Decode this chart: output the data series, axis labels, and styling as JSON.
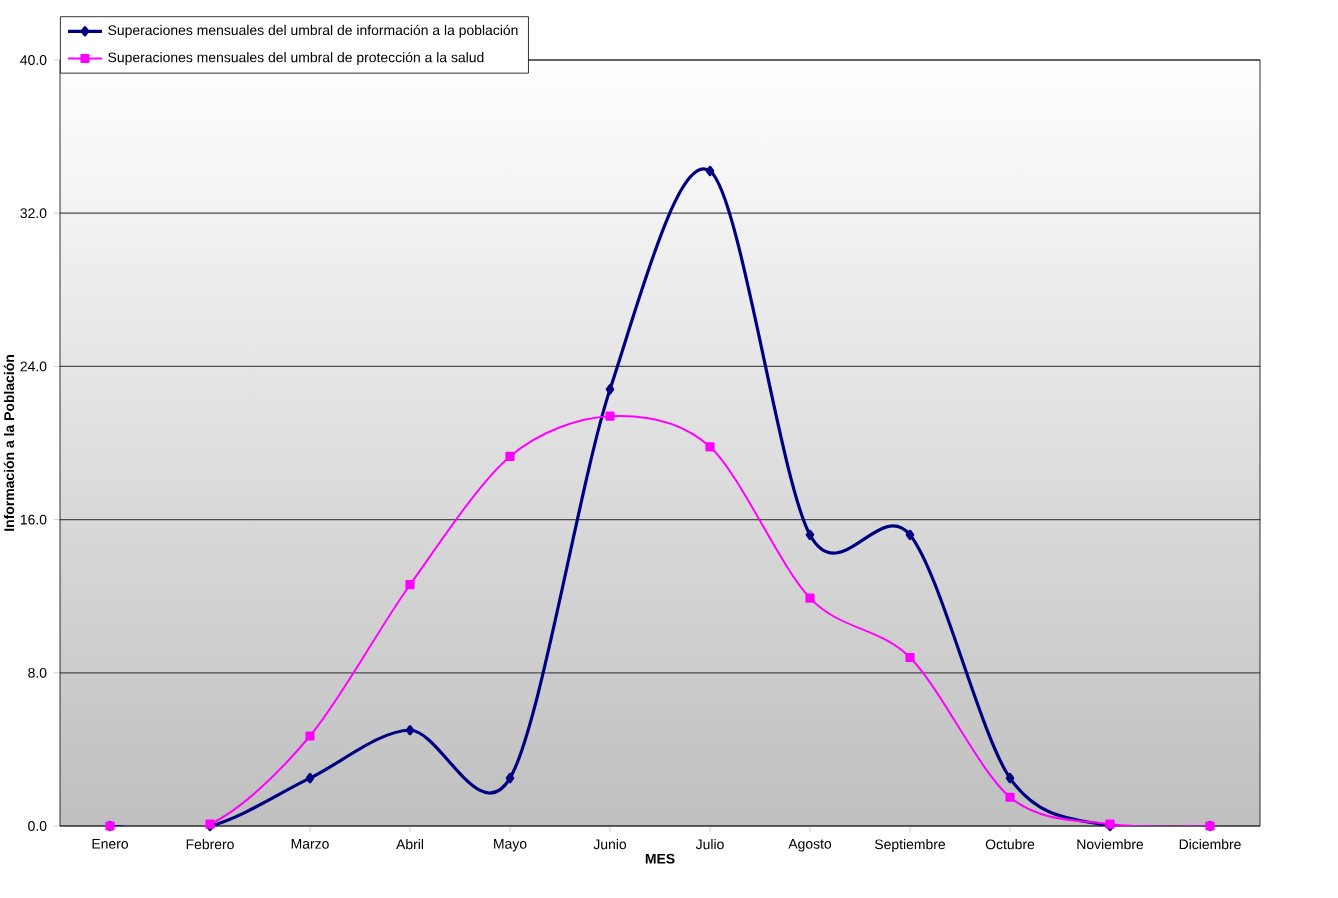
{
  "chart_data": {
    "type": "line",
    "xlabel": "MES",
    "ylabel": "Información a la Población",
    "categories": [
      "Enero",
      "Febrero",
      "Marzo",
      "Abril",
      "Mayo",
      "Junio",
      "Julio",
      "Agosto",
      "Septiembre",
      "Octubre",
      "Noviembre",
      "Diciembre"
    ],
    "series": [
      {
        "name": "Superaciones mensuales del umbral de información a la población",
        "color": "#000080",
        "marker": "diamond",
        "values": [
          0,
          0,
          2.5,
          5.0,
          2.5,
          22.8,
          34.2,
          15.2,
          15.2,
          2.5,
          0,
          0
        ]
      },
      {
        "name": "Superaciones mensuales del umbral de protección a la salud",
        "color": "#ff00ff",
        "marker": "square",
        "values": [
          0,
          0.1,
          4.7,
          12.6,
          19.3,
          21.4,
          19.8,
          11.9,
          8.8,
          1.5,
          0.1,
          0
        ]
      }
    ],
    "ylim": [
      0,
      40
    ],
    "yticks": [
      {
        "value": 0,
        "label": "0.0"
      },
      {
        "value": 8,
        "label": "8.0"
      },
      {
        "value": 16,
        "label": "16.0"
      },
      {
        "value": 24,
        "label": "24.0"
      },
      {
        "value": 32,
        "label": "32.0"
      },
      {
        "value": 40,
        "label": "40.0"
      }
    ],
    "grid": "y",
    "legend": "top left"
  }
}
